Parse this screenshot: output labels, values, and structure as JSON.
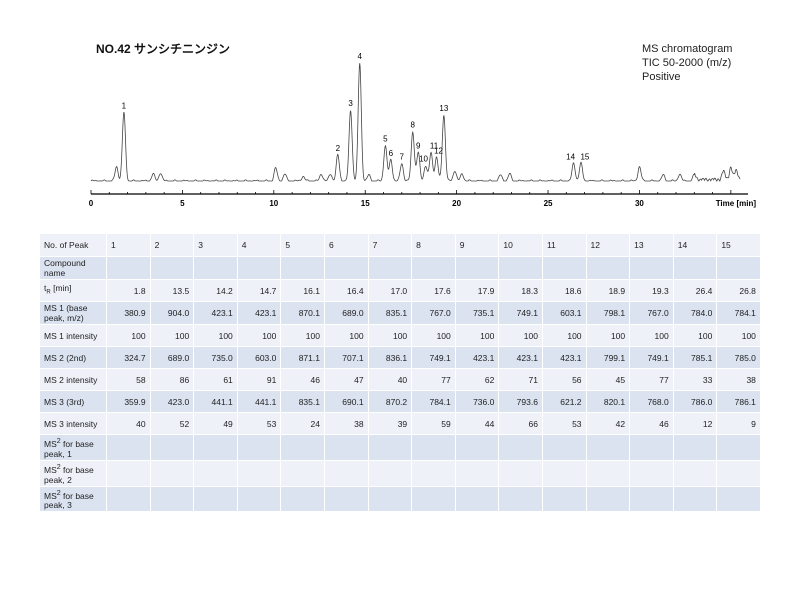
{
  "title": "NO.42 サンシチニンジン",
  "info": [
    "MS chromatogram",
    "TIC 50-2000 (m/z)",
    "Positive"
  ],
  "chart_data": {
    "type": "line",
    "xlabel": "Time [min]",
    "xlim": [
      0,
      35.5
    ],
    "x_ticks": [
      0,
      5,
      10,
      15,
      20,
      25,
      30
    ],
    "peaks": [
      {
        "label": "1",
        "x": 1.8,
        "y": 0.58
      },
      {
        "label": "2",
        "x": 13.5,
        "y": 0.22
      },
      {
        "label": "3",
        "x": 14.2,
        "y": 0.6
      },
      {
        "label": "4",
        "x": 14.7,
        "y": 1.0
      },
      {
        "label": "5",
        "x": 16.1,
        "y": 0.3
      },
      {
        "label": "6",
        "x": 16.4,
        "y": 0.18
      },
      {
        "label": "7",
        "x": 17.0,
        "y": 0.15
      },
      {
        "label": "8",
        "x": 17.6,
        "y": 0.42
      },
      {
        "label": "9",
        "x": 17.9,
        "y": 0.24
      },
      {
        "label": "10",
        "x": 18.3,
        "y": 0.13
      },
      {
        "label": "11",
        "x": 18.6,
        "y": 0.24
      },
      {
        "label": "12",
        "x": 18.9,
        "y": 0.2
      },
      {
        "label": "13",
        "x": 19.3,
        "y": 0.56
      },
      {
        "label": "14",
        "x": 26.4,
        "y": 0.15
      },
      {
        "label": "15",
        "x": 26.8,
        "y": 0.15
      }
    ],
    "minor_peaks": [
      {
        "x": 1.4,
        "y": 0.12
      },
      {
        "x": 3.4,
        "y": 0.06
      },
      {
        "x": 3.8,
        "y": 0.07
      },
      {
        "x": 10.1,
        "y": 0.11
      },
      {
        "x": 10.6,
        "y": 0.06
      },
      {
        "x": 11.6,
        "y": 0.04
      },
      {
        "x": 12.6,
        "y": 0.06
      },
      {
        "x": 13.1,
        "y": 0.06
      },
      {
        "x": 15.2,
        "y": 0.05
      },
      {
        "x": 19.9,
        "y": 0.09
      },
      {
        "x": 20.3,
        "y": 0.06
      },
      {
        "x": 22.4,
        "y": 0.05
      },
      {
        "x": 22.9,
        "y": 0.06
      },
      {
        "x": 30.0,
        "y": 0.12
      },
      {
        "x": 31.3,
        "y": 0.05
      },
      {
        "x": 32.2,
        "y": 0.06
      },
      {
        "x": 33.0,
        "y": 0.05
      },
      {
        "x": 34.6,
        "y": 0.07
      },
      {
        "x": 35.0,
        "y": 0.1
      },
      {
        "x": 35.3,
        "y": 0.08
      }
    ]
  },
  "table": {
    "header_label": "No. of Peak",
    "peak_numbers": [
      "1",
      "2",
      "3",
      "4",
      "5",
      "6",
      "7",
      "8",
      "9",
      "10",
      "11",
      "12",
      "13",
      "14",
      "15"
    ],
    "rows": [
      {
        "label": "Compound name",
        "values": [
          "",
          "",
          "",
          "",
          "",
          "",
          "",
          "",
          "",
          "",
          "",
          "",
          "",
          "",
          ""
        ]
      },
      {
        "label_main": "t",
        "label_sub": "R",
        "label_rest": " [min]",
        "values": [
          "1.8",
          "13.5",
          "14.2",
          "14.7",
          "16.1",
          "16.4",
          "17.0",
          "17.6",
          "17.9",
          "18.3",
          "18.6",
          "18.9",
          "19.3",
          "26.4",
          "26.8"
        ]
      },
      {
        "label": "MS 1 (base peak, m/z)",
        "values": [
          "380.9",
          "904.0",
          "423.1",
          "423.1",
          "870.1",
          "689.0",
          "835.1",
          "767.0",
          "735.1",
          "749.1",
          "603.1",
          "798.1",
          "767.0",
          "784.0",
          "784.1"
        ]
      },
      {
        "label": "MS 1 intensity",
        "values": [
          "100",
          "100",
          "100",
          "100",
          "100",
          "100",
          "100",
          "100",
          "100",
          "100",
          "100",
          "100",
          "100",
          "100",
          "100"
        ]
      },
      {
        "label": "MS 2 (2nd)",
        "values": [
          "324.7",
          "689.0",
          "735.0",
          "603.0",
          "871.1",
          "707.1",
          "836.1",
          "749.1",
          "423.1",
          "423.1",
          "423.1",
          "799.1",
          "749.1",
          "785.1",
          "785.0"
        ]
      },
      {
        "label": "MS 2 intensity",
        "values": [
          "58",
          "86",
          "61",
          "91",
          "46",
          "47",
          "40",
          "77",
          "62",
          "71",
          "56",
          "45",
          "77",
          "33",
          "38"
        ]
      },
      {
        "label": "MS 3 (3rd)",
        "values": [
          "359.9",
          "423.0",
          "441.1",
          "441.1",
          "835.1",
          "690.1",
          "870.2",
          "784.1",
          "736.0",
          "793.6",
          "621.2",
          "820.1",
          "768.0",
          "786.0",
          "786.1"
        ]
      },
      {
        "label": "MS 3 intensity",
        "values": [
          "40",
          "52",
          "49",
          "53",
          "24",
          "38",
          "39",
          "59",
          "44",
          "66",
          "53",
          "42",
          "46",
          "12",
          "9"
        ]
      },
      {
        "label_main": "MS",
        "label_sup": "2",
        "label_rest": " for base peak, 1",
        "values": [
          "",
          "",
          "",
          "",
          "",
          "",
          "",
          "",
          "",
          "",
          "",
          "",
          "",
          "",
          ""
        ]
      },
      {
        "label_main": "MS",
        "label_sup": "2",
        "label_rest": " for base peak, 2",
        "values": [
          "",
          "",
          "",
          "",
          "",
          "",
          "",
          "",
          "",
          "",
          "",
          "",
          "",
          "",
          ""
        ]
      },
      {
        "label_main": "MS",
        "label_sup": "2",
        "label_rest": " for base peak, 3",
        "values": [
          "",
          "",
          "",
          "",
          "",
          "",
          "",
          "",
          "",
          "",
          "",
          "",
          "",
          "",
          ""
        ]
      }
    ]
  }
}
